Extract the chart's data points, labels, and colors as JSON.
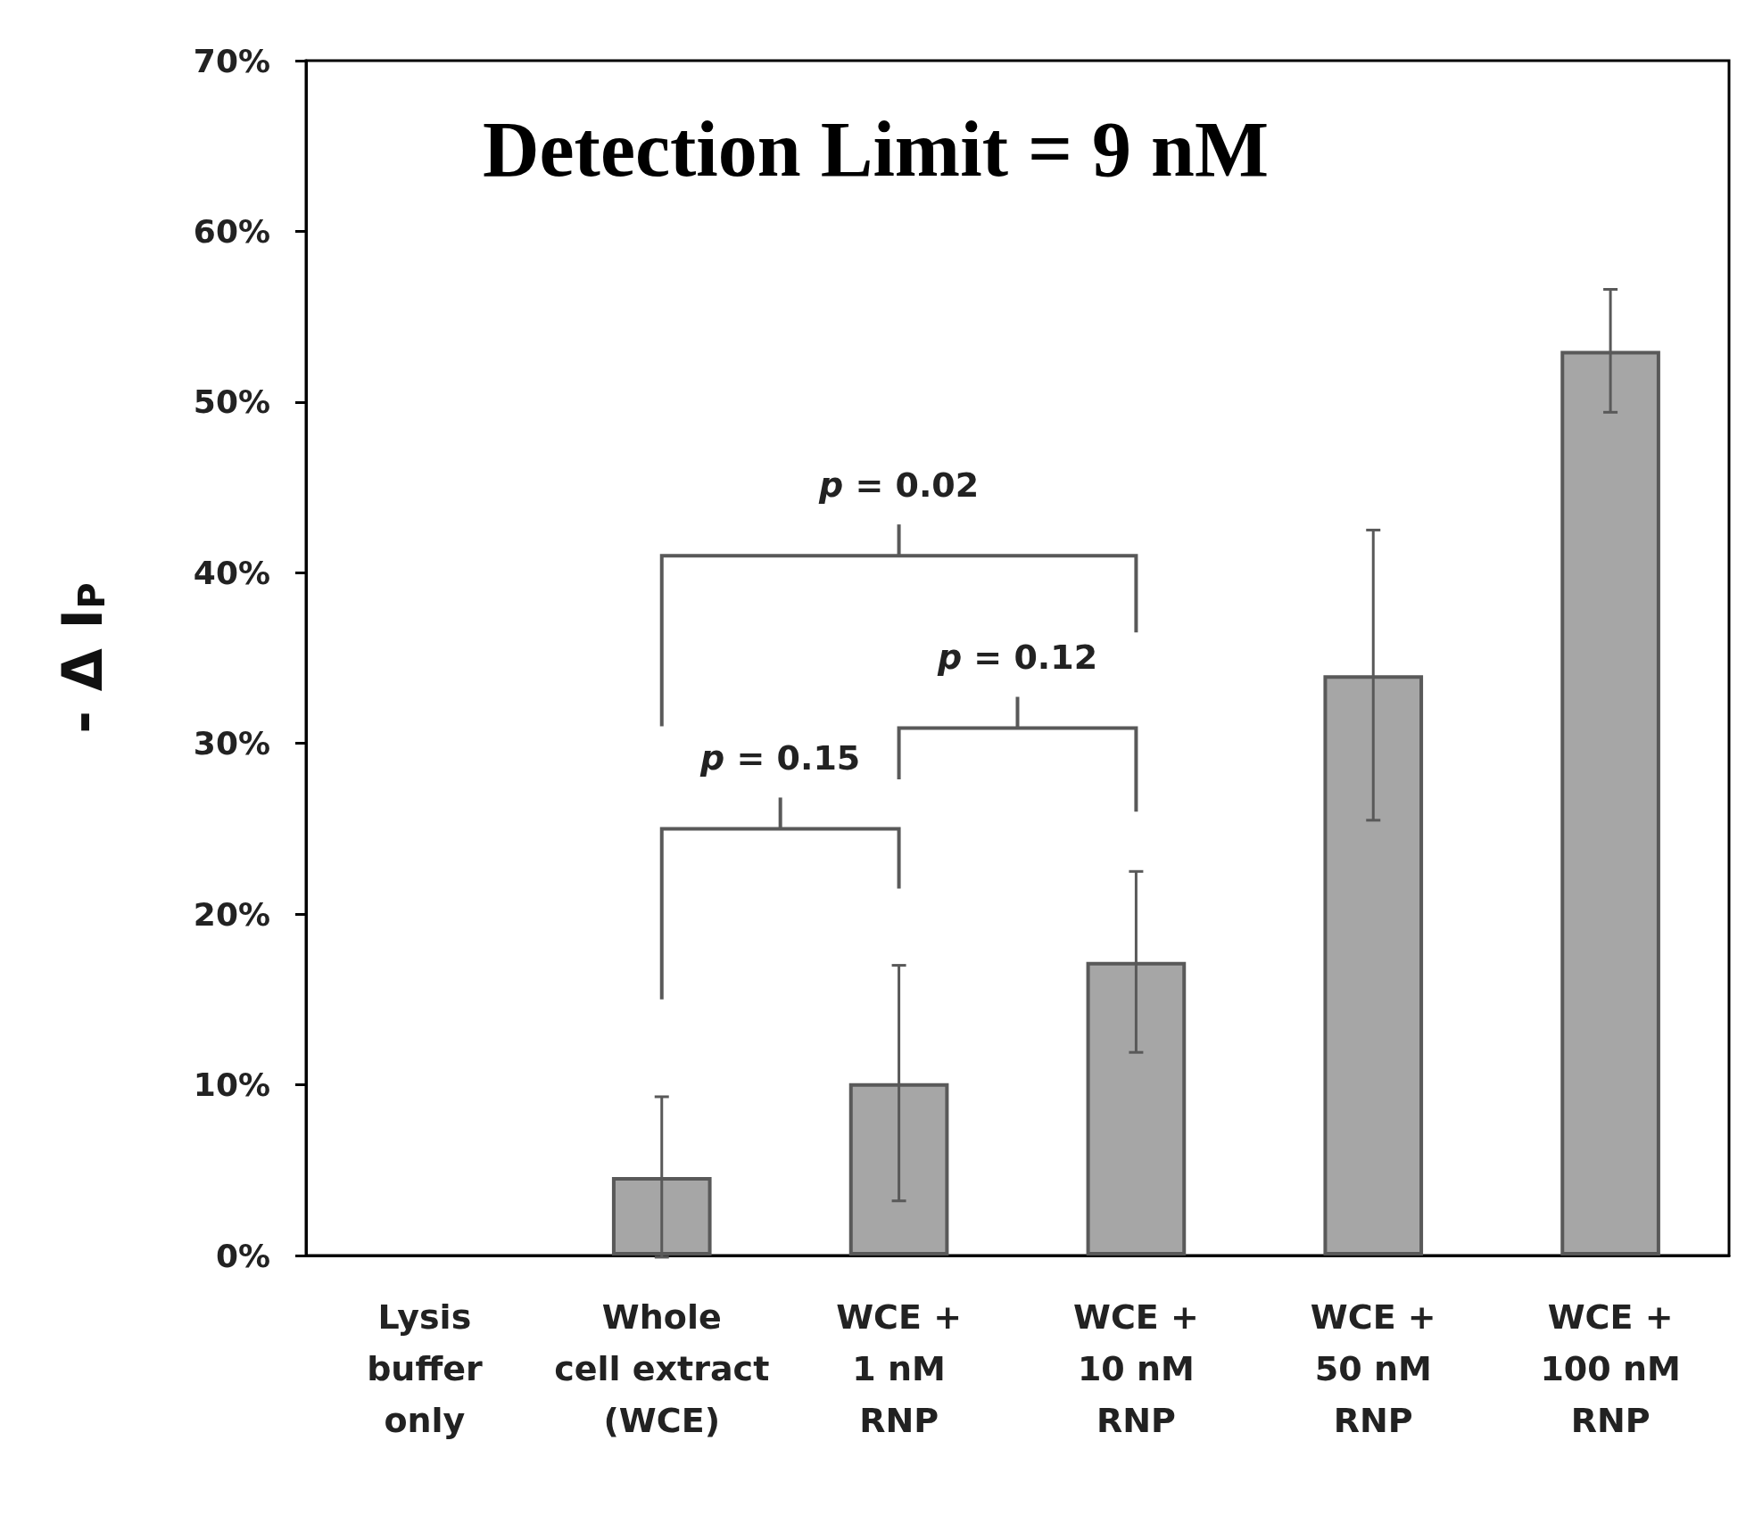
{
  "chart_data": {
    "type": "bar",
    "ylabel": "- Δ I$_{P}$",
    "categories": [
      "Lysis\nbuffer\nonly",
      "Whole\ncell extract\n(WCE)",
      "WCE +\n1 nM\nRNP",
      "WCE +\n10 nM\nRNP",
      "WCE +\n50 nM\nRNP",
      "WCE +\n100 nM\nRNP"
    ],
    "values": [
      0,
      4.6,
      10.1,
      17.2,
      34.0,
      53.0
    ],
    "errors": [
      null,
      4.7,
      6.9,
      5.3,
      8.5,
      3.6
    ],
    "color": "#a6a6a6",
    "ylim": [
      0,
      70
    ],
    "yticks": [
      {
        "value": 0,
        "label": "0%"
      },
      {
        "value": 10,
        "label": "10%"
      },
      {
        "value": 20,
        "label": "20%"
      },
      {
        "value": 30,
        "label": "30%"
      },
      {
        "value": 40,
        "label": "40%"
      },
      {
        "value": 50,
        "label": "50%"
      },
      {
        "value": 60,
        "label": "60%"
      },
      {
        "value": 70,
        "label": "70%"
      }
    ],
    "grid": false,
    "annotations": [
      "Detection Limit = 9 nM",
      "p = 0.15",
      "p = 0.12",
      "p = 0.02"
    ]
  }
}
